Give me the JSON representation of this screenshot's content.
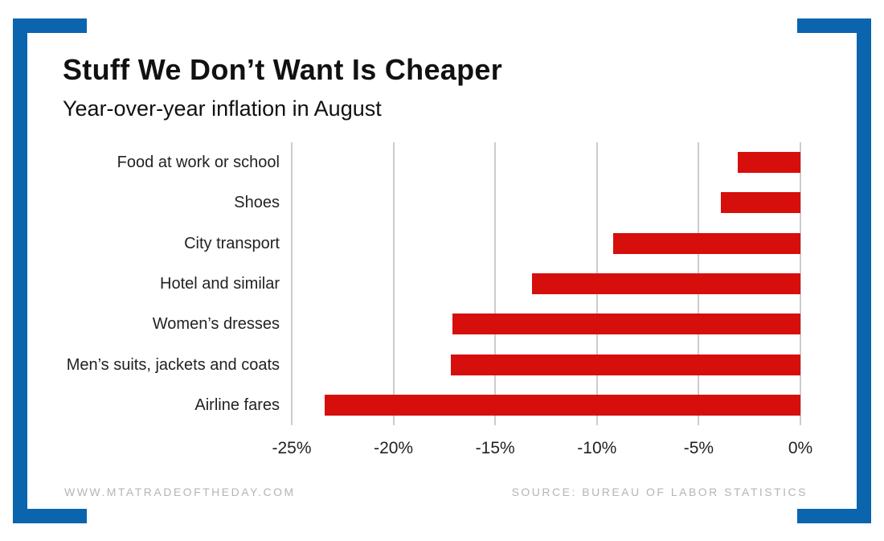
{
  "header": {
    "title": "Stuff We Don’t Want Is Cheaper",
    "subtitle": "Year-over-year inflation in August"
  },
  "chart_data": {
    "type": "bar",
    "orientation": "horizontal",
    "title": "Stuff We Don’t Want Is Cheaper",
    "subtitle": "Year-over-year inflation in August",
    "categories": [
      "Food at work or school",
      "Shoes",
      "City transport",
      "Hotel and similar",
      "Women’s dresses",
      "Men’s suits, jackets and coats",
      "Airline fares"
    ],
    "values": [
      -3.1,
      -3.9,
      -9.2,
      -13.2,
      -17.1,
      -17.2,
      -23.4
    ],
    "unit": "%",
    "xlim": [
      -25,
      0
    ],
    "x_ticks": [
      "-25%",
      "-20%",
      "-15%",
      "-10%",
      "-5%",
      "0%"
    ],
    "grid": true,
    "legend": "none",
    "bar_color": "#d60e0c",
    "gridline_color": "#cccccc"
  },
  "footer": {
    "website": "WWW.MTATRADEOFTHEDAY.COM",
    "source": "SOURCE: BUREAU OF LABOR STATISTICS"
  },
  "frame": {
    "bracket_color": "#0a64ae"
  }
}
